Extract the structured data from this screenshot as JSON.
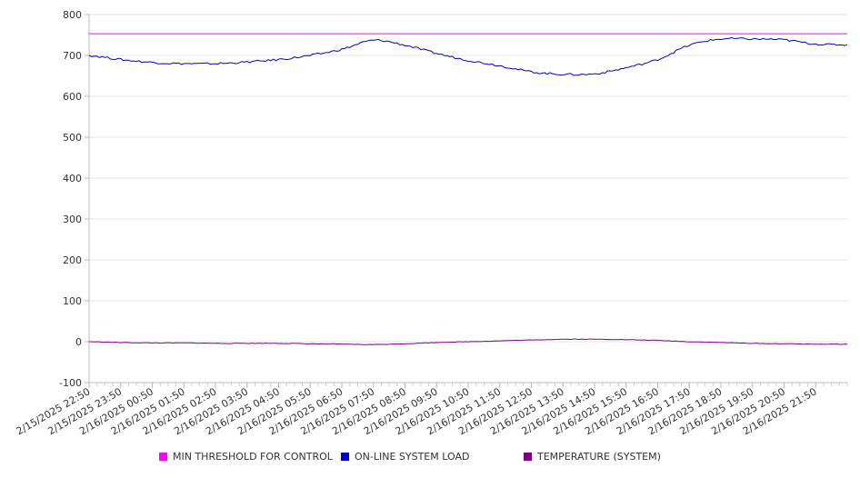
{
  "chart_data": {
    "type": "line",
    "title": "",
    "xlabel": "",
    "ylabel": "",
    "ylim": [
      -100,
      800
    ],
    "yticks": [
      "800",
      "700",
      "600",
      "500",
      "400",
      "300",
      "200",
      "100",
      "0",
      "-100"
    ],
    "xticks": [
      "2/15/2025 22:50",
      "2/15/2025 23:50",
      "2/16/2025 00:50",
      "2/16/2025 01:50",
      "2/16/2025 02:50",
      "2/16/2025 03:50",
      "2/16/2025 04:50",
      "2/16/2025 05:50",
      "2/16/2025 06:50",
      "2/16/2025 07:50",
      "2/16/2025 08:50",
      "2/16/2025 09:50",
      "2/16/2025 10:50",
      "2/16/2025 11:50",
      "2/16/2025 12:50",
      "2/16/2025 13:50",
      "2/16/2025 14:50",
      "2/16/2025 15:50",
      "2/16/2025 16:50",
      "2/16/2025 17:50",
      "2/16/2025 18:50",
      "2/16/2025 19:50",
      "2/16/2025 20:50",
      "2/16/2025 21:50"
    ],
    "x": [
      "2/15/2025 22:50",
      "2/15/2025 23:50",
      "2/16/2025 00:50",
      "2/16/2025 01:50",
      "2/16/2025 02:50",
      "2/16/2025 03:50",
      "2/16/2025 04:50",
      "2/16/2025 05:50",
      "2/16/2025 06:50",
      "2/16/2025 07:50",
      "2/16/2025 08:50",
      "2/16/2025 09:50",
      "2/16/2025 10:50",
      "2/16/2025 11:50",
      "2/16/2025 12:50",
      "2/16/2025 13:50",
      "2/16/2025 14:50",
      "2/16/2025 15:50",
      "2/16/2025 16:50",
      "2/16/2025 17:50",
      "2/16/2025 18:50",
      "2/16/2025 19:50",
      "2/16/2025 20:50",
      "2/16/2025 21:50",
      "2/16/2025 22:50"
    ],
    "grid": true,
    "legend_position": "bottom",
    "series": [
      {
        "name": "MIN THRESHOLD FOR CONTROL",
        "color": "#ff00ff",
        "values": [
          753,
          753,
          753,
          753,
          753,
          753,
          753,
          753,
          753,
          753,
          753,
          753,
          753,
          753,
          753,
          753,
          753,
          753,
          753,
          753,
          753,
          753,
          753,
          753,
          753
        ]
      },
      {
        "name": "ON-LINE SYSTEM LOAD",
        "color": "#0000cc",
        "values": [
          700,
          690,
          683,
          680,
          680,
          684,
          690,
          700,
          715,
          737,
          725,
          705,
          688,
          675,
          660,
          654,
          655,
          670,
          690,
          725,
          740,
          740,
          738,
          728,
          726
        ]
      },
      {
        "name": "TEMPERATURE (SYSTEM)",
        "color": "#800080",
        "values": [
          0,
          -2,
          -3,
          -3,
          -4,
          -4,
          -4,
          -5,
          -6,
          -7,
          -5,
          -2,
          0,
          2,
          4,
          6,
          6,
          5,
          3,
          0,
          -2,
          -4,
          -5,
          -6,
          -6
        ]
      }
    ]
  }
}
